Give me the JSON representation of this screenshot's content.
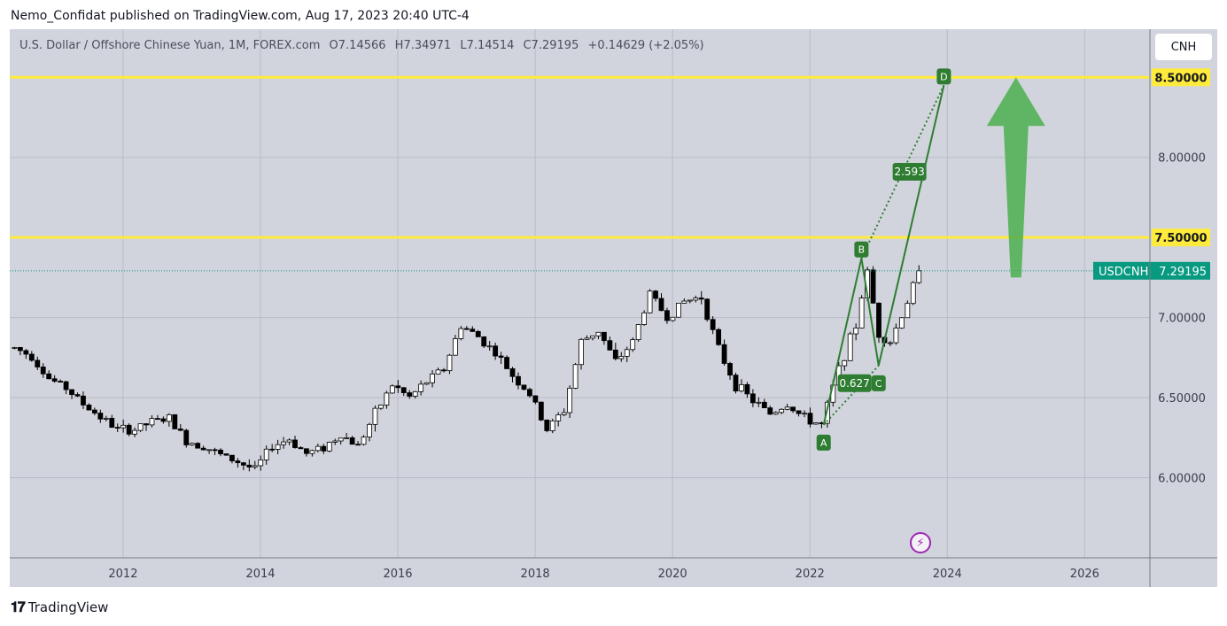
{
  "header": {
    "published": "Nemo_Confidat published on TradingView.com, Aug 17, 2023 20:40 UTC-4"
  },
  "legend": {
    "symbol": "U.S. Dollar / Offshore Chinese Yuan, 1M, FOREX.com",
    "open": "O7.14566",
    "high": "H7.34971",
    "low": "L7.14514",
    "close": "C7.29195",
    "change": "+0.14629 (+2.05%)"
  },
  "currency_button": "CNH",
  "footer": {
    "brand": "TradingView"
  },
  "colors": {
    "background": "#d1d4dc",
    "grid": "#b8bcc6",
    "bull": "#ffffff",
    "bear": "#000000",
    "level": "#ffeb3b",
    "pattern": "#2e7d32",
    "arrow": "#4caf50",
    "last_price": "#089981"
  },
  "chart_data": {
    "type": "candlestick",
    "title": "U.S. Dollar / Offshore Chinese Yuan, 1M, FOREX.com",
    "x_ticks": [
      "2012",
      "2014",
      "2016",
      "2018",
      "2020",
      "2022",
      "2024",
      "2026"
    ],
    "y_ticks": [
      "6.00000",
      "6.50000",
      "7.00000",
      "8.00000"
    ],
    "ylim": [
      5.5,
      8.8
    ],
    "xlim": [
      2010.35,
      2026.95
    ],
    "horizontal_levels": [
      {
        "value": 8.5,
        "label": "8.50000"
      },
      {
        "value": 7.5,
        "label": "7.50000"
      }
    ],
    "last_price": {
      "symbol": "USDCNH",
      "value": 7.29195,
      "label": "7.29195"
    },
    "pattern_points": [
      {
        "label": "A",
        "date": 2022.2,
        "price": 6.33
      },
      {
        "label": "B",
        "date": 2022.75,
        "price": 7.37
      },
      {
        "label": "C",
        "date": 2023.0,
        "price": 6.7
      },
      {
        "label": "D",
        "date": 2023.95,
        "price": 8.45
      }
    ],
    "ratios": [
      {
        "label": "0.627",
        "date": 2022.65,
        "price": 6.59
      },
      {
        "label": "2.593",
        "date": 2023.45,
        "price": 7.91
      }
    ],
    "projection_arrow": {
      "date": 2025.0,
      "from": 7.25,
      "to": 8.5
    },
    "closes": [
      {
        "t": 2010.42,
        "v": 6.81
      },
      {
        "t": 2010.67,
        "v": 6.76
      },
      {
        "t": 2010.92,
        "v": 6.62
      },
      {
        "t": 2011.17,
        "v": 6.56
      },
      {
        "t": 2011.42,
        "v": 6.46
      },
      {
        "t": 2011.67,
        "v": 6.38
      },
      {
        "t": 2011.92,
        "v": 6.3
      },
      {
        "t": 2012.17,
        "v": 6.3
      },
      {
        "t": 2012.42,
        "v": 6.35
      },
      {
        "t": 2012.67,
        "v": 6.37
      },
      {
        "t": 2012.92,
        "v": 6.23
      },
      {
        "t": 2013.17,
        "v": 6.2
      },
      {
        "t": 2013.42,
        "v": 6.14
      },
      {
        "t": 2013.67,
        "v": 6.1
      },
      {
        "t": 2013.92,
        "v": 6.05
      },
      {
        "t": 2014.17,
        "v": 6.2
      },
      {
        "t": 2014.42,
        "v": 6.24
      },
      {
        "t": 2014.67,
        "v": 6.15
      },
      {
        "t": 2014.92,
        "v": 6.19
      },
      {
        "t": 2015.17,
        "v": 6.27
      },
      {
        "t": 2015.42,
        "v": 6.2
      },
      {
        "t": 2015.67,
        "v": 6.4
      },
      {
        "t": 2015.92,
        "v": 6.58
      },
      {
        "t": 2016.17,
        "v": 6.5
      },
      {
        "t": 2016.42,
        "v": 6.6
      },
      {
        "t": 2016.67,
        "v": 6.68
      },
      {
        "t": 2016.92,
        "v": 6.95
      },
      {
        "t": 2017.17,
        "v": 6.88
      },
      {
        "t": 2017.42,
        "v": 6.78
      },
      {
        "t": 2017.67,
        "v": 6.64
      },
      {
        "t": 2017.92,
        "v": 6.52
      },
      {
        "t": 2018.17,
        "v": 6.3
      },
      {
        "t": 2018.42,
        "v": 6.42
      },
      {
        "t": 2018.67,
        "v": 6.85
      },
      {
        "t": 2018.92,
        "v": 6.92
      },
      {
        "t": 2019.17,
        "v": 6.72
      },
      {
        "t": 2019.42,
        "v": 6.85
      },
      {
        "t": 2019.67,
        "v": 7.15
      },
      {
        "t": 2019.92,
        "v": 7.0
      },
      {
        "t": 2020.17,
        "v": 7.1
      },
      {
        "t": 2020.42,
        "v": 7.13
      },
      {
        "t": 2020.67,
        "v": 6.8
      },
      {
        "t": 2020.92,
        "v": 6.58
      },
      {
        "t": 2021.17,
        "v": 6.48
      },
      {
        "t": 2021.42,
        "v": 6.4
      },
      {
        "t": 2021.67,
        "v": 6.46
      },
      {
        "t": 2021.92,
        "v": 6.37
      },
      {
        "t": 2022.17,
        "v": 6.33
      },
      {
        "t": 2022.42,
        "v": 6.68
      },
      {
        "t": 2022.67,
        "v": 6.95
      },
      {
        "t": 2022.83,
        "v": 7.3
      },
      {
        "t": 2023.0,
        "v": 6.9
      },
      {
        "t": 2023.17,
        "v": 6.85
      },
      {
        "t": 2023.42,
        "v": 7.1
      },
      {
        "t": 2023.58,
        "v": 7.29
      }
    ]
  }
}
